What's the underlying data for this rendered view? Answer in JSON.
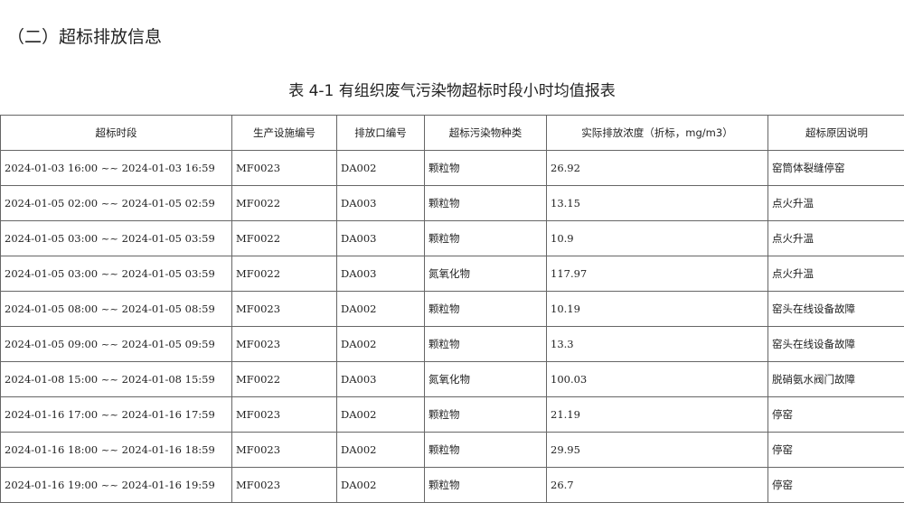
{
  "section_title": "（二）超标排放信息",
  "table_caption": "表 4-1 有组织废气污染物超标时段小时均值报表",
  "columns": [
    "超标时段",
    "生产设施编号",
    "排放口编号",
    "超标污染物种类",
    "实际排放浓度（折标，mg/m3）",
    "超标原因说明"
  ],
  "rows": [
    [
      "2024-01-03 16:00 ~~ 2024-01-03 16:59",
      "MF0023",
      "DA002",
      "颗粒物",
      "26.92",
      "窑筒体裂缝停窑"
    ],
    [
      "2024-01-05 02:00 ~~ 2024-01-05 02:59",
      "MF0022",
      "DA003",
      "颗粒物",
      "13.15",
      "点火升温"
    ],
    [
      "2024-01-05 03:00 ~~ 2024-01-05 03:59",
      "MF0022",
      "DA003",
      "颗粒物",
      "10.9",
      "点火升温"
    ],
    [
      "2024-01-05 03:00 ~~ 2024-01-05 03:59",
      "MF0022",
      "DA003",
      "氮氧化物",
      "117.97",
      "点火升温"
    ],
    [
      "2024-01-05 08:00 ~~ 2024-01-05 08:59",
      "MF0023",
      "DA002",
      "颗粒物",
      "10.19",
      "窑头在线设备故障"
    ],
    [
      "2024-01-05 09:00 ~~ 2024-01-05 09:59",
      "MF0023",
      "DA002",
      "颗粒物",
      "13.3",
      "窑头在线设备故障"
    ],
    [
      "2024-01-08 15:00 ~~ 2024-01-08 15:59",
      "MF0022",
      "DA003",
      "氮氧化物",
      "100.03",
      "脱硝氨水阀门故障"
    ],
    [
      "2024-01-16 17:00 ~~ 2024-01-16 17:59",
      "MF0023",
      "DA002",
      "颗粒物",
      "21.19",
      "停窑"
    ],
    [
      "2024-01-16 18:00 ~~ 2024-01-16 18:59",
      "MF0023",
      "DA002",
      "颗粒物",
      "29.95",
      "停窑"
    ],
    [
      "2024-01-16 19:00 ~~ 2024-01-16 19:59",
      "MF0023",
      "DA002",
      "颗粒物",
      "26.7",
      "停窑"
    ]
  ]
}
